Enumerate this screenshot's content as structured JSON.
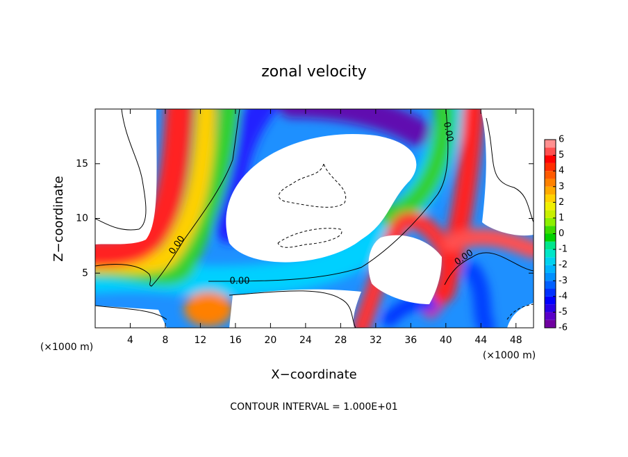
{
  "chart_data": {
    "type": "contour",
    "title": "zonal velocity",
    "xlabel": "X−coordinate",
    "ylabel": "Z−coordinate",
    "x_unit_label": "(×1000 m)",
    "y_unit_label": "(×1000 m)",
    "note": "CONTOUR INTERVAL = 1.000E+01",
    "contour_labels": [
      "0.00",
      "0.00",
      "0.00",
      "0.00"
    ],
    "xlim": [
      0,
      50
    ],
    "xticks": [
      4,
      8,
      12,
      16,
      20,
      24,
      28,
      32,
      36,
      40,
      44,
      48
    ],
    "ylim": [
      0,
      20
    ],
    "yticks": [
      5,
      10,
      15
    ],
    "colorbar": {
      "lim": [
        -6,
        6
      ],
      "ticks": [
        6,
        5,
        4,
        3,
        2,
        1,
        0,
        -1,
        -2,
        -3,
        -4,
        -5,
        -6
      ],
      "colors": [
        "#7000a0",
        "#5a00c8",
        "#2800e6",
        "#0000ff",
        "#0030ff",
        "#0060ff",
        "#0090ff",
        "#00b4ff",
        "#00d2f0",
        "#00e6c8",
        "#00e68c",
        "#00d200",
        "#3cdc00",
        "#8cf000",
        "#c8f000",
        "#f0f000",
        "#ffd200",
        "#ffaa00",
        "#ff8200",
        "#ff5a00",
        "#ff2d00",
        "#ff0000",
        "#ff5050",
        "#ff9090"
      ]
    }
  }
}
